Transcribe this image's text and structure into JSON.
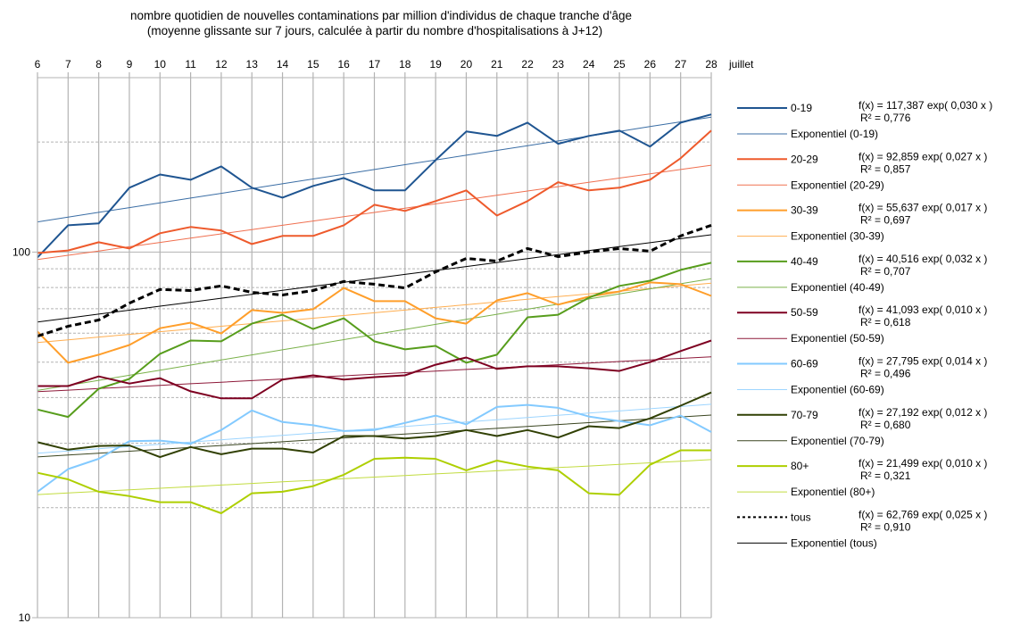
{
  "chart_data": {
    "type": "line",
    "title": "nombre quotidien de nouvelles contaminations par million d'individus de chaque tranche d'âge",
    "subtitle": "(moyenne glissante sur 7 jours, calculée à partir du nombre d'hospitalisations à J+12)",
    "xlabel": "juillet",
    "ylabel": "",
    "yscale": "log",
    "ylim": [
      10,
      300
    ],
    "y_tick_labels": [
      "10",
      "100"
    ],
    "y_minor_gridlines": [
      20,
      30,
      40,
      50,
      60,
      70,
      80,
      90,
      200
    ],
    "x": [
      6,
      7,
      8,
      9,
      10,
      11,
      12,
      13,
      14,
      15,
      16,
      17,
      18,
      19,
      20,
      21,
      22,
      23,
      24,
      25,
      26,
      27,
      28
    ],
    "x_tick_labels": [
      "6",
      "7",
      "8",
      "9",
      "10",
      "11",
      "12",
      "13",
      "14",
      "15",
      "16",
      "17",
      "18",
      "19",
      "20",
      "21",
      "22",
      "23",
      "24",
      "25",
      "26",
      "27",
      "28"
    ],
    "x_axis_position": "top",
    "grid": true,
    "legend_position": "right",
    "series": [
      {
        "name": "0-19",
        "color": "#1f5591",
        "style": "solid",
        "values": [
          96.7,
          118.4,
          119.8,
          150,
          163,
          157.7,
          171.6,
          150,
          140.9,
          151.7,
          159.5,
          147.5,
          147.5,
          178.5,
          213.7,
          207.8,
          226,
          197.8,
          207.8,
          214.9,
          194.4,
          226,
          238
        ],
        "trend": {
          "label": "Exponentiel (0-19)",
          "a": 117.387,
          "b": 0.03,
          "r2": "0,776",
          "equation": "f(x) = 117,387 exp( 0,030 x )",
          "r2_text": "R² = 0,776",
          "color": "#3b6ea5"
        }
      },
      {
        "name": "20-29",
        "color": "#ee5a2c",
        "style": "solid",
        "values": [
          99.4,
          101,
          106.4,
          102.3,
          112.6,
          117.1,
          114.5,
          105.2,
          110.7,
          110.7,
          118.4,
          134.7,
          129.6,
          137.9,
          147.5,
          125.9,
          137.9,
          155.3,
          147.5,
          150,
          157.7,
          180.6,
          214.9
        ],
        "trend": {
          "label": "Exponentiel (20-29)",
          "a": 92.859,
          "b": 0.027,
          "r2": "0,857",
          "equation": "f(x) = 92,859 exp( 0,027 x )",
          "r2_text": "R² = 0,857",
          "color": "#f07050"
        }
      },
      {
        "name": "30-39",
        "color": "#ff9e2a",
        "style": "solid",
        "values": [
          60.6,
          49.8,
          52.4,
          55.7,
          61.9,
          64.1,
          59.9,
          69.4,
          68.2,
          69.8,
          79.8,
          73.4,
          73.4,
          65.9,
          63.7,
          73.8,
          77.2,
          71.8,
          75.5,
          78,
          82.6,
          81.7,
          75.9
        ],
        "trend": {
          "label": "Exponentiel (30-39)",
          "a": 55.637,
          "b": 0.017,
          "r2": "0,697",
          "equation": "f(x) = 55,637 exp( 0,017 x )",
          "r2_text": "R² = 0,697",
          "color": "#ffae50"
        }
      },
      {
        "name": "40-49",
        "color": "#579d1c",
        "style": "solid",
        "values": [
          37.1,
          35.4,
          42.3,
          45,
          52.7,
          57.3,
          57,
          63.7,
          67.4,
          61.6,
          65.9,
          57,
          54.2,
          55.4,
          49.8,
          52.4,
          66.3,
          67.4,
          75,
          80.8,
          83.5,
          89.4,
          93.5
        ],
        "trend": {
          "label": "Exponentiel (40-49)",
          "a": 40.516,
          "b": 0.032,
          "r2": "0,707",
          "equation": "f(x) = 40,516 exp( 0,032 x )",
          "r2_text": "R² = 0,707",
          "color": "#7ab14a"
        }
      },
      {
        "name": "50-59",
        "color": "#7e0021",
        "style": "solid",
        "values": [
          43,
          43,
          45.7,
          43.7,
          45.2,
          41.6,
          39.8,
          39.8,
          44.8,
          46,
          44.8,
          45.5,
          46,
          49.2,
          51.5,
          47.9,
          48.7,
          48.7,
          48.1,
          47.3,
          50,
          53.6,
          57.3
        ],
        "trend": {
          "label": "Exponentiel (50-59)",
          "a": 41.093,
          "b": 0.01,
          "r2": "0,618",
          "equation": "f(x) = 41,093 exp( 0,010 x )",
          "r2_text": "R² = 0,618",
          "color": "#8e1a3a"
        }
      },
      {
        "name": "60-69",
        "color": "#83caff",
        "style": "solid",
        "values": [
          22.1,
          25.5,
          27.2,
          30.4,
          30.5,
          29.9,
          32.6,
          36.9,
          34.3,
          33.6,
          32.4,
          32.6,
          34.1,
          35.7,
          33.8,
          37.7,
          38.2,
          37.5,
          35.5,
          34.5,
          33.6,
          35.7,
          32.2
        ],
        "trend": {
          "label": "Exponentiel (60-69)",
          "a": 27.795,
          "b": 0.014,
          "r2": "0,496",
          "equation": "f(x) = 27,795 exp( 0,014 x )",
          "r2_text": "R² = 0,496",
          "color": "#9dd5ff"
        }
      },
      {
        "name": "70-79",
        "color": "#314004",
        "style": "solid",
        "values": [
          30.2,
          28.8,
          29.5,
          29.6,
          27.5,
          29.3,
          28,
          29,
          29,
          28.3,
          31.4,
          31.4,
          30.9,
          31.4,
          32.6,
          31.4,
          32.6,
          31.1,
          33.4,
          33,
          35.1,
          38,
          41.3
        ],
        "trend": {
          "label": "Exponentiel (70-79)",
          "a": 27.192,
          "b": 0.012,
          "r2": "0,680",
          "equation": "f(x) = 27,192 exp( 0,012 x )",
          "r2_text": "R² = 0,680",
          "color": "#3a4520"
        }
      },
      {
        "name": "80+",
        "color": "#aecf00",
        "style": "solid",
        "values": [
          24.9,
          23.9,
          22.1,
          21.5,
          20.7,
          20.7,
          19.3,
          21.9,
          22.1,
          22.9,
          24.6,
          27.2,
          27.4,
          27.2,
          25.3,
          26.9,
          25.9,
          25.3,
          21.9,
          21.7,
          26.2,
          28.7,
          28.7
        ],
        "trend": {
          "label": "Exponentiel (80+)",
          "a": 21.499,
          "b": 0.01,
          "r2": "0,321",
          "equation": "f(x) = 21,499 exp( 0,010 x )",
          "r2_text": "R² = 0,321",
          "color": "#c2dc40"
        }
      },
      {
        "name": "tous",
        "color": "#000000",
        "style": "dashed",
        "values": [
          58.9,
          62.7,
          65.2,
          72.5,
          79,
          78.5,
          80.8,
          77.6,
          76.3,
          78.5,
          83.1,
          81.7,
          79.8,
          88.3,
          96.1,
          94.5,
          102.3,
          97.2,
          100,
          102.3,
          100.6,
          110.7,
          118.4
        ],
        "trend": {
          "label": "Exponentiel (tous)",
          "a": 62.769,
          "b": 0.025,
          "r2": "0,910",
          "equation": "f(x) = 62,769 exp( 0,025 x )",
          "r2_text": "R² = 0,910",
          "color": "#000000"
        }
      }
    ]
  }
}
